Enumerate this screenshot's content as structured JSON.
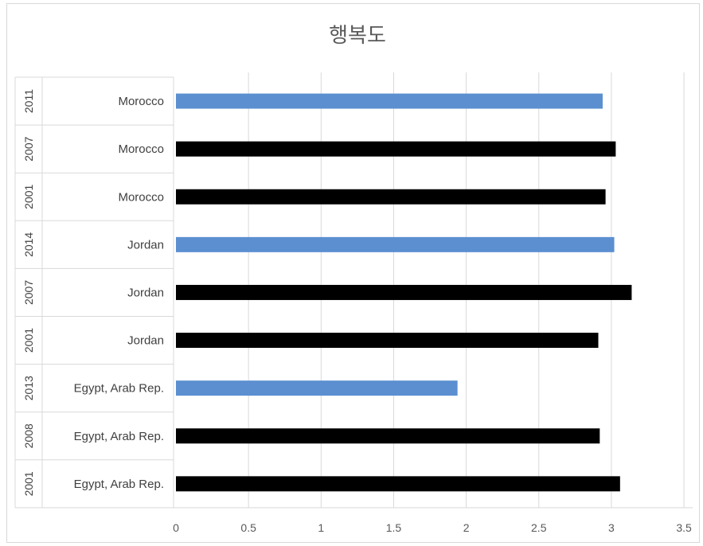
{
  "chart_data": {
    "type": "bar",
    "orientation": "horizontal",
    "title": "행복도",
    "xlim": [
      0,
      3.5
    ],
    "x_ticks": [
      "0",
      "0.5",
      "1",
      "1.5",
      "2",
      "2.5",
      "3",
      "3.5"
    ],
    "grid": true,
    "legend": "none",
    "colors": {
      "highlight": "#5b8fd0",
      "default": "#000000"
    },
    "rows": [
      {
        "country": "Morocco",
        "year": "2011",
        "value": 2.94,
        "highlight": true
      },
      {
        "country": "Morocco",
        "year": "2007",
        "value": 3.03,
        "highlight": false
      },
      {
        "country": "Morocco",
        "year": "2001",
        "value": 2.96,
        "highlight": false
      },
      {
        "country": "Jordan",
        "year": "2014",
        "value": 3.02,
        "highlight": true
      },
      {
        "country": "Jordan",
        "year": "2007",
        "value": 3.14,
        "highlight": false
      },
      {
        "country": "Jordan",
        "year": "2001",
        "value": 2.91,
        "highlight": false
      },
      {
        "country": "Egypt, Arab Rep.",
        "year": "2013",
        "value": 1.94,
        "highlight": true
      },
      {
        "country": "Egypt, Arab Rep.",
        "year": "2008",
        "value": 2.92,
        "highlight": false
      },
      {
        "country": "Egypt, Arab Rep.",
        "year": "2001",
        "value": 3.06,
        "highlight": false
      }
    ]
  }
}
